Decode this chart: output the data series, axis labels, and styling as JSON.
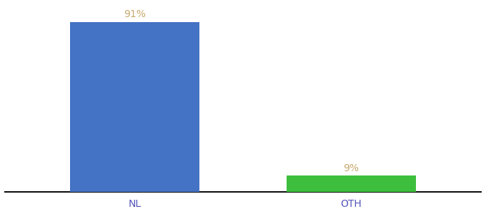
{
  "categories": [
    "NL",
    "OTH"
  ],
  "values": [
    91,
    9
  ],
  "bar_colors": [
    "#4472C4",
    "#3DBF3D"
  ],
  "label_color": "#C8A96E",
  "ylim": [
    0,
    100
  ],
  "bar_width": 0.6,
  "background_color": "#ffffff",
  "label_fontsize": 10,
  "tick_fontsize": 10,
  "tick_color": "#5555BB",
  "label_texts": [
    "91%",
    "9%"
  ],
  "x_positions": [
    0,
    1
  ]
}
